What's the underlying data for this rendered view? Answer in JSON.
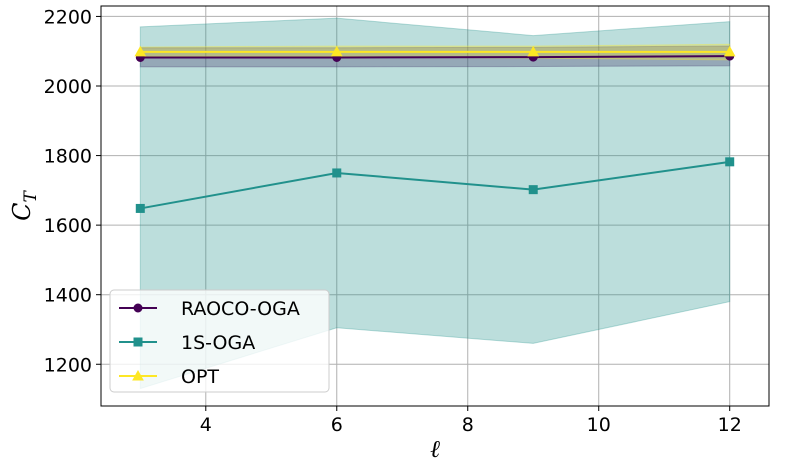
{
  "chart_data": {
    "type": "line",
    "xlabel": "ℓ",
    "ylabel_main": "C",
    "ylabel_sub": "T",
    "xlim": [
      2.4,
      12.6
    ],
    "ylim": [
      1080,
      2230
    ],
    "xticks": [
      4,
      6,
      8,
      10,
      12
    ],
    "yticks": [
      1200,
      1400,
      1600,
      1800,
      2000,
      2200
    ],
    "grid": true,
    "legend_position": "lower-left",
    "x": [
      3,
      6,
      9,
      12
    ],
    "series": [
      {
        "name": "RAOCO-OGA",
        "marker": "circle",
        "color": "#440154",
        "band_color": "#440154",
        "values": [
          2082,
          2082,
          2083,
          2086
        ],
        "lower": [
          2055,
          2055,
          2056,
          2058
        ],
        "upper": [
          2110,
          2110,
          2111,
          2115
        ]
      },
      {
        "name": "1S-OGA",
        "marker": "square",
        "color": "#21918c",
        "band_color": "#21918c",
        "values": [
          1648,
          1750,
          1702,
          1782
        ],
        "lower": [
          1130,
          1305,
          1260,
          1380
        ],
        "upper": [
          2170,
          2195,
          2145,
          2185
        ]
      },
      {
        "name": "OPT",
        "marker": "triangle",
        "color": "#fde725",
        "band_color": "#fde725",
        "values": [
          2098,
          2098,
          2098,
          2098
        ],
        "lower": [
          2085,
          2085,
          2080,
          2075
        ],
        "upper": [
          2112,
          2115,
          2115,
          2120
        ]
      }
    ]
  }
}
